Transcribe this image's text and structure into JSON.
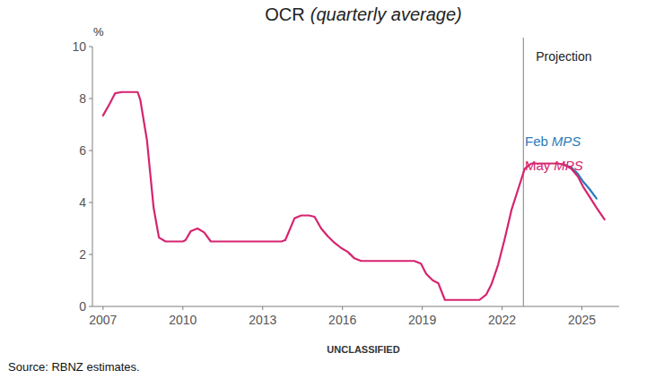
{
  "chart_data": {
    "type": "line",
    "title": "OCR",
    "subtitle": "(quarterly average)",
    "y_label": "%",
    "x_label": "UNCLASSIFIED",
    "source": "Source: RBNZ estimates.",
    "x": [
      2007,
      2007.25,
      2007.45,
      2007.7,
      2008,
      2008.3,
      2008.4,
      2008.65,
      2008.9,
      2009.1,
      2009.35,
      2009.6,
      2010,
      2010.1,
      2010.3,
      2010.55,
      2010.8,
      2011.05,
      2013.7,
      2013.85,
      2014.2,
      2014.45,
      2014.75,
      2014.95,
      2015.2,
      2015.45,
      2015.7,
      2015.95,
      2016.2,
      2016.45,
      2016.7,
      2018.7,
      2018.95,
      2019.15,
      2019.4,
      2019.6,
      2019.85,
      2021.15,
      2021.4,
      2021.6,
      2021.85,
      2022.1,
      2022.35,
      2022.6,
      2022.85,
      2023.1,
      2024.1,
      2024.35,
      2024.6,
      2024.85,
      2025.05,
      2025.3,
      2025.55,
      2025.85
    ],
    "xlim": [
      2006.6,
      2026.4
    ],
    "xticks": [
      2007,
      2010,
      2013,
      2016,
      2019,
      2022,
      2025
    ],
    "ylim": [
      0,
      10
    ],
    "yticks": [
      0,
      2,
      4,
      6,
      8,
      10
    ],
    "grid": false,
    "series": [
      {
        "name": "Feb MPS",
        "color": "#2b7bba",
        "values": [
          null,
          null,
          null,
          null,
          null,
          null,
          null,
          null,
          null,
          null,
          null,
          null,
          null,
          null,
          null,
          null,
          null,
          null,
          null,
          null,
          null,
          null,
          null,
          null,
          null,
          null,
          null,
          null,
          null,
          null,
          null,
          null,
          null,
          null,
          null,
          null,
          null,
          null,
          null,
          null,
          null,
          null,
          null,
          null,
          null,
          null,
          null,
          5.45,
          5.35,
          5.1,
          4.8,
          4.5,
          4.15,
          null
        ]
      },
      {
        "name": "May MPS",
        "color": "#d6246e",
        "values": [
          7.35,
          7.8,
          8.2,
          8.25,
          8.25,
          8.25,
          7.95,
          6.4,
          3.8,
          2.65,
          2.5,
          2.5,
          2.5,
          2.55,
          2.9,
          3.0,
          2.85,
          2.5,
          2.5,
          2.55,
          3.4,
          3.5,
          3.5,
          3.45,
          3.0,
          2.7,
          2.45,
          2.25,
          2.1,
          1.85,
          1.75,
          1.75,
          1.65,
          1.25,
          1.0,
          0.9,
          0.25,
          0.25,
          0.45,
          0.85,
          1.6,
          2.6,
          3.7,
          4.5,
          5.3,
          5.5,
          5.5,
          5.45,
          5.3,
          5.0,
          4.6,
          4.2,
          3.8,
          3.35
        ]
      }
    ],
    "annotations": [
      {
        "x": 2022.8,
        "label": "Projection"
      }
    ]
  }
}
